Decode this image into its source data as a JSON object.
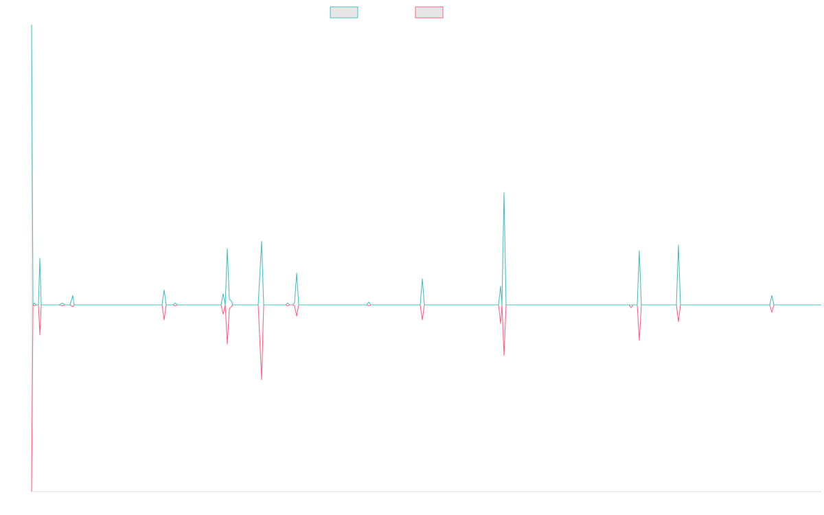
{
  "chart_data": {
    "type": "line",
    "title": "",
    "xlabel": "",
    "ylabel": "",
    "grid": false,
    "legend_position": "top-center",
    "x_range": [
      0,
      1150
    ],
    "y_range": [
      -1.0,
      1.5
    ],
    "colors": {
      "series_a": "#4bc0c0",
      "series_b": "#ff6384",
      "axis": "#e0e0e0"
    },
    "series": [
      {
        "name": "",
        "color": "#4bc0c0",
        "points": [
          [
            0,
            1.5
          ],
          [
            2,
            0.0
          ],
          [
            4,
            0.01
          ],
          [
            7,
            0.0
          ],
          [
            10,
            0.0
          ],
          [
            12,
            0.25
          ],
          [
            14,
            0.0
          ],
          [
            40,
            0.0
          ],
          [
            45,
            0.01
          ],
          [
            48,
            0.0
          ],
          [
            56,
            0.0
          ],
          [
            60,
            0.05
          ],
          [
            62,
            0.0
          ],
          [
            140,
            0.0
          ],
          [
            143,
            0.0
          ],
          [
            190,
            0.0
          ],
          [
            193,
            0.08
          ],
          [
            196,
            0.0
          ],
          [
            206,
            0.0
          ],
          [
            209,
            0.01
          ],
          [
            212,
            0.0
          ],
          [
            276,
            0.0
          ],
          [
            279,
            0.06
          ],
          [
            282,
            0.0
          ],
          [
            285,
            0.3
          ],
          [
            288,
            0.03
          ],
          [
            291,
            0.02
          ],
          [
            293,
            0.0
          ],
          [
            330,
            0.0
          ],
          [
            335,
            0.34
          ],
          [
            338,
            0.0
          ],
          [
            370,
            0.0
          ],
          [
            373,
            0.01
          ],
          [
            376,
            0.0
          ],
          [
            380,
            0.0
          ],
          [
            383,
            0.01
          ],
          [
            386,
            0.17
          ],
          [
            389,
            0.0
          ],
          [
            420,
            0.0
          ],
          [
            422,
            0.0
          ],
          [
            488,
            0.0
          ],
          [
            491,
            0.015
          ],
          [
            494,
            0.0
          ],
          [
            566,
            0.0
          ],
          [
            569,
            0.14
          ],
          [
            572,
            0.0
          ],
          [
            680,
            0.0
          ],
          [
            683,
            0.1
          ],
          [
            685,
            0.0
          ],
          [
            688,
            0.6
          ],
          [
            691,
            0.0
          ],
          [
            870,
            0.0
          ],
          [
            873,
            0.0
          ],
          [
            876,
            0.0
          ],
          [
            882,
            0.0
          ],
          [
            885,
            0.29
          ],
          [
            888,
            0.0
          ],
          [
            939,
            0.0
          ],
          [
            942,
            0.32
          ],
          [
            945,
            0.0
          ],
          [
            1075,
            0.0
          ],
          [
            1078,
            0.05
          ],
          [
            1081,
            0.0
          ],
          [
            1150,
            0.0
          ]
        ]
      },
      {
        "name": "",
        "color": "#ff6384",
        "points": [
          [
            0,
            -1.0
          ],
          [
            2,
            0.0
          ],
          [
            4,
            -0.005
          ],
          [
            7,
            0.0
          ],
          [
            10,
            0.0
          ],
          [
            12,
            -0.16
          ],
          [
            14,
            0.0
          ],
          [
            40,
            0.0
          ],
          [
            45,
            -0.005
          ],
          [
            48,
            0.0
          ],
          [
            56,
            0.0
          ],
          [
            60,
            -0.01
          ],
          [
            62,
            0.0
          ],
          [
            140,
            0.0
          ],
          [
            143,
            0.0
          ],
          [
            190,
            0.0
          ],
          [
            193,
            -0.08
          ],
          [
            196,
            0.0
          ],
          [
            206,
            0.0
          ],
          [
            209,
            -0.005
          ],
          [
            212,
            0.0
          ],
          [
            276,
            0.0
          ],
          [
            279,
            -0.05
          ],
          [
            282,
            0.0
          ],
          [
            285,
            -0.21
          ],
          [
            288,
            -0.02
          ],
          [
            291,
            -0.01
          ],
          [
            293,
            0.0
          ],
          [
            330,
            0.0
          ],
          [
            335,
            -0.4
          ],
          [
            338,
            0.0
          ],
          [
            370,
            0.0
          ],
          [
            373,
            -0.005
          ],
          [
            376,
            0.0
          ],
          [
            380,
            0.0
          ],
          [
            383,
            -0.005
          ],
          [
            386,
            -0.06
          ],
          [
            389,
            0.0
          ],
          [
            420,
            0.0
          ],
          [
            422,
            0.0
          ],
          [
            488,
            0.0
          ],
          [
            491,
            -0.005
          ],
          [
            494,
            0.0
          ],
          [
            566,
            0.0
          ],
          [
            569,
            -0.08
          ],
          [
            572,
            0.0
          ],
          [
            680,
            0.0
          ],
          [
            683,
            -0.1
          ],
          [
            685,
            0.0
          ],
          [
            688,
            -0.27
          ],
          [
            691,
            0.0
          ],
          [
            870,
            0.0
          ],
          [
            873,
            -0.015
          ],
          [
            876,
            0.0
          ],
          [
            882,
            0.0
          ],
          [
            885,
            -0.19
          ],
          [
            888,
            0.0
          ],
          [
            939,
            0.0
          ],
          [
            942,
            -0.09
          ],
          [
            945,
            0.0
          ],
          [
            1075,
            0.0
          ],
          [
            1078,
            -0.04
          ],
          [
            1081,
            0.0
          ],
          [
            1150,
            0.0
          ]
        ]
      }
    ]
  }
}
